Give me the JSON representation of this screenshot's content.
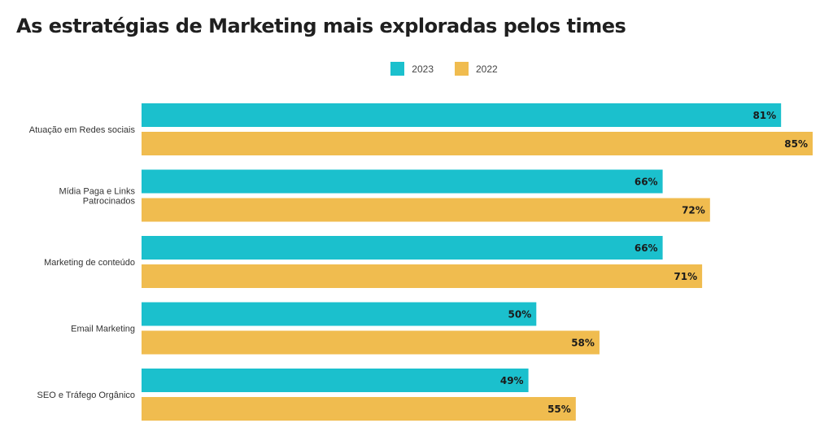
{
  "chart_data": {
    "type": "bar",
    "orientation": "horizontal",
    "title": "As estratégias de Marketing mais exploradas pelos times",
    "categories": [
      [
        "Atuação em Redes sociais"
      ],
      [
        "Mídia Paga e Links",
        "Patrocinados"
      ],
      [
        "Marketing de conteúdo"
      ],
      [
        "Email Marketing"
      ],
      [
        "SEO e Tráfego Orgânico"
      ]
    ],
    "series": [
      {
        "name": "2023",
        "color": "#1bc0cd",
        "values": [
          81,
          66,
          66,
          50,
          49
        ]
      },
      {
        "name": "2022",
        "color": "#f0bc4f",
        "values": [
          85,
          72,
          71,
          58,
          55
        ]
      }
    ],
    "value_suffix": "%",
    "xlim": [
      0,
      85
    ],
    "legend_position": "top-center",
    "grid": false
  }
}
